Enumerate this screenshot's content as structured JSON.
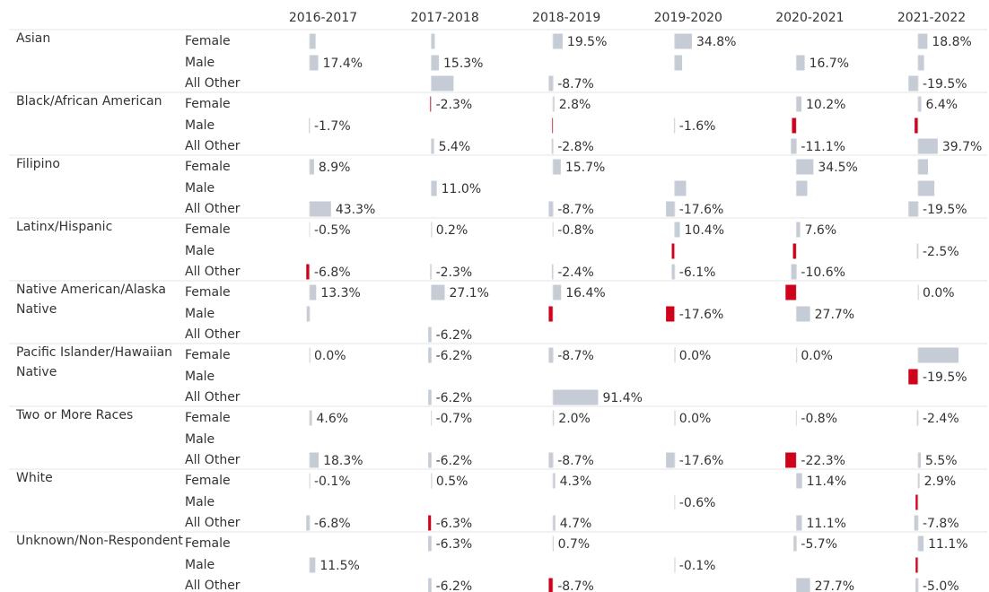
{
  "chart_data": {
    "type": "bar",
    "groups": [
      "Asian",
      "Black/African American",
      "Filipino",
      "Latinx/Hispanic",
      "Native American/Alaska Native",
      "Pacific Islander/Hawaiian Native",
      "Two or More Races",
      "White",
      "Unknown/Non-Respondent"
    ],
    "subgroups": [
      "Female",
      "Male",
      "All Other"
    ],
    "series": [
      {
        "name": "2016-2017",
        "values": [
          12,
          17.4,
          null,
          null,
          -1.7,
          null,
          8.9,
          null,
          43.3,
          -0.5,
          null,
          -6.8,
          13.3,
          -6,
          null,
          0.0,
          null,
          null,
          4.6,
          null,
          18.3,
          -0.1,
          null,
          -6.8,
          null,
          11.5,
          null
        ],
        "value_labels": [
          null,
          "17.4%",
          null,
          null,
          "-1.7%",
          null,
          "8.9%",
          null,
          "43.3%",
          "-0.5%",
          null,
          "-6.8%",
          "13.3%",
          null,
          null,
          "0.0%",
          null,
          null,
          "4.6%",
          null,
          "18.3%",
          "-0.1%",
          null,
          "-6.8%",
          null,
          "11.5%",
          null
        ],
        "colors": [
          "#c5ccd6",
          "#c5ccd6",
          null,
          null,
          "#c5ccd6",
          null,
          "#c5ccd6",
          null,
          "#c5ccd6",
          "#c5ccd6",
          null,
          "#d0021b",
          "#c5ccd6",
          "#c5ccd6",
          null,
          "#c5ccd6",
          null,
          null,
          "#c5ccd6",
          null,
          "#c5ccd6",
          "#c5ccd6",
          null,
          "#c5ccd6",
          null,
          "#c5ccd6",
          null
        ]
      },
      {
        "name": "2017-2018",
        "values": [
          7,
          15.3,
          45,
          -2.3,
          null,
          5.4,
          null,
          11.0,
          null,
          0.2,
          null,
          -2.3,
          27.1,
          null,
          -6.2,
          -6.2,
          null,
          -6.2,
          -0.7,
          null,
          -6.2,
          0.5,
          null,
          -6.3,
          -6.3,
          null,
          -6.2
        ],
        "value_labels": [
          null,
          "15.3%",
          null,
          "-2.3%",
          null,
          "5.4%",
          null,
          "11.0%",
          null,
          "0.2%",
          null,
          "-2.3%",
          "27.1%",
          null,
          "-6.2%",
          "-6.2%",
          null,
          "-6.2%",
          "-0.7%",
          null,
          "-6.2%",
          "0.5%",
          null,
          "-6.3%",
          "-6.3%",
          null,
          "-6.2%"
        ],
        "colors": [
          "#c5ccd6",
          "#c5ccd6",
          "#c5ccd6",
          "#d0021b",
          null,
          "#c5ccd6",
          null,
          "#c5ccd6",
          null,
          "#c5ccd6",
          null,
          "#c5ccd6",
          "#c5ccd6",
          null,
          "#c5ccd6",
          "#c5ccd6",
          null,
          "#c5ccd6",
          "#c5ccd6",
          null,
          "#c5ccd6",
          "#c5ccd6",
          null,
          "#d0021b",
          "#c5ccd6",
          null,
          "#c5ccd6"
        ]
      },
      {
        "name": "2018-2019",
        "values": [
          19.5,
          null,
          -8.7,
          2.8,
          -2,
          -2.8,
          15.7,
          null,
          -8.7,
          -0.8,
          null,
          -2.4,
          16.4,
          -8.7,
          null,
          -8.7,
          null,
          91.4,
          2.0,
          null,
          -8.7,
          4.3,
          null,
          4.7,
          0.7,
          null,
          -8.7
        ],
        "value_labels": [
          "19.5%",
          null,
          "-8.7%",
          "2.8%",
          null,
          "-2.8%",
          "15.7%",
          null,
          "-8.7%",
          "-0.8%",
          null,
          "-2.4%",
          "16.4%",
          null,
          null,
          "-8.7%",
          null,
          "91.4%",
          "2.0%",
          null,
          "-8.7%",
          "4.3%",
          null,
          "4.7%",
          "0.7%",
          null,
          "-8.7%"
        ],
        "colors": [
          "#c5ccd6",
          null,
          "#c5ccd6",
          "#c5ccd6",
          "#d0021b",
          "#c5ccd6",
          "#c5ccd6",
          null,
          "#c5ccd6",
          "#c5ccd6",
          null,
          "#c5ccd6",
          "#c5ccd6",
          "#d0021b",
          null,
          "#c5ccd6",
          null,
          "#c5ccd6",
          "#c5ccd6",
          null,
          "#c5ccd6",
          "#c5ccd6",
          null,
          "#c5ccd6",
          "#c5ccd6",
          null,
          "#d0021b"
        ]
      },
      {
        "name": "2019-2020",
        "values": [
          34.8,
          15,
          null,
          null,
          -1.6,
          null,
          null,
          23,
          -17.6,
          10.4,
          -6,
          -6.1,
          null,
          -17.6,
          null,
          0.0,
          null,
          null,
          0.0,
          null,
          -17.6,
          null,
          -0.6,
          null,
          null,
          -0.1,
          null
        ],
        "value_labels": [
          "34.8%",
          null,
          null,
          null,
          "-1.6%",
          null,
          null,
          null,
          "-17.6%",
          "10.4%",
          null,
          "-6.1%",
          null,
          "-17.6%",
          null,
          "0.0%",
          null,
          null,
          "0.0%",
          null,
          "-17.6%",
          null,
          "-0.6%",
          null,
          null,
          "-0.1%",
          null
        ],
        "colors": [
          "#c5ccd6",
          "#c5ccd6",
          null,
          null,
          "#c5ccd6",
          null,
          null,
          "#c5ccd6",
          "#c5ccd6",
          "#c5ccd6",
          "#d0021b",
          "#c5ccd6",
          null,
          "#d0021b",
          null,
          "#c5ccd6",
          null,
          null,
          "#c5ccd6",
          null,
          "#c5ccd6",
          null,
          "#c5ccd6",
          null,
          null,
          "#c5ccd6",
          null
        ]
      },
      {
        "name": "2020-2021",
        "values": [
          null,
          16.7,
          null,
          10.2,
          -9,
          -11.1,
          34.5,
          22,
          null,
          7.6,
          -7,
          -10.6,
          -22,
          27.7,
          null,
          0.0,
          null,
          null,
          -0.8,
          null,
          -22.3,
          11.4,
          null,
          11.1,
          -5.7,
          null,
          27.7
        ],
        "value_labels": [
          null,
          "16.7%",
          null,
          "10.2%",
          null,
          "-11.1%",
          "34.5%",
          null,
          null,
          "7.6%",
          null,
          "-10.6%",
          null,
          "27.7%",
          null,
          "0.0%",
          null,
          null,
          "-0.8%",
          null,
          "-22.3%",
          "11.4%",
          null,
          "11.1%",
          "-5.7%",
          null,
          "27.7%"
        ],
        "colors": [
          null,
          "#c5ccd6",
          null,
          "#c5ccd6",
          "#d0021b",
          "#c5ccd6",
          "#c5ccd6",
          "#c5ccd6",
          null,
          "#c5ccd6",
          "#d0021b",
          "#c5ccd6",
          "#d0021b",
          "#c5ccd6",
          null,
          "#c5ccd6",
          null,
          null,
          "#c5ccd6",
          null,
          "#d0021b",
          "#c5ccd6",
          null,
          "#c5ccd6",
          "#c5ccd6",
          null,
          "#c5ccd6"
        ]
      },
      {
        "name": "2021-2022",
        "values": [
          18.8,
          12,
          -19.5,
          6.4,
          -7,
          39.7,
          20,
          33,
          -19.5,
          null,
          -2.5,
          null,
          0.0,
          null,
          null,
          82,
          -19.5,
          null,
          -2.4,
          null,
          5.5,
          2.9,
          -5,
          -7.8,
          11.1,
          -5,
          -5.0
        ],
        "value_labels": [
          "18.8%",
          null,
          "-19.5%",
          "6.4%",
          null,
          "39.7%",
          null,
          null,
          "-19.5%",
          null,
          "-2.5%",
          null,
          "0.0%",
          null,
          null,
          null,
          "-19.5%",
          null,
          "-2.4%",
          null,
          "5.5%",
          "2.9%",
          null,
          "-7.8%",
          "11.1%",
          null,
          "-5.0%"
        ],
        "colors": [
          "#c5ccd6",
          "#c5ccd6",
          "#c5ccd6",
          "#c5ccd6",
          "#d0021b",
          "#c5ccd6",
          "#c5ccd6",
          "#c5ccd6",
          "#c5ccd6",
          null,
          "#c5ccd6",
          null,
          "#c5ccd6",
          null,
          null,
          "#c5ccd6",
          "#d0021b",
          null,
          "#c5ccd6",
          null,
          "#c5ccd6",
          "#c5ccd6",
          "#d0021b",
          "#c5ccd6",
          "#c5ccd6",
          "#d0021b",
          "#c5ccd6"
        ]
      }
    ]
  }
}
